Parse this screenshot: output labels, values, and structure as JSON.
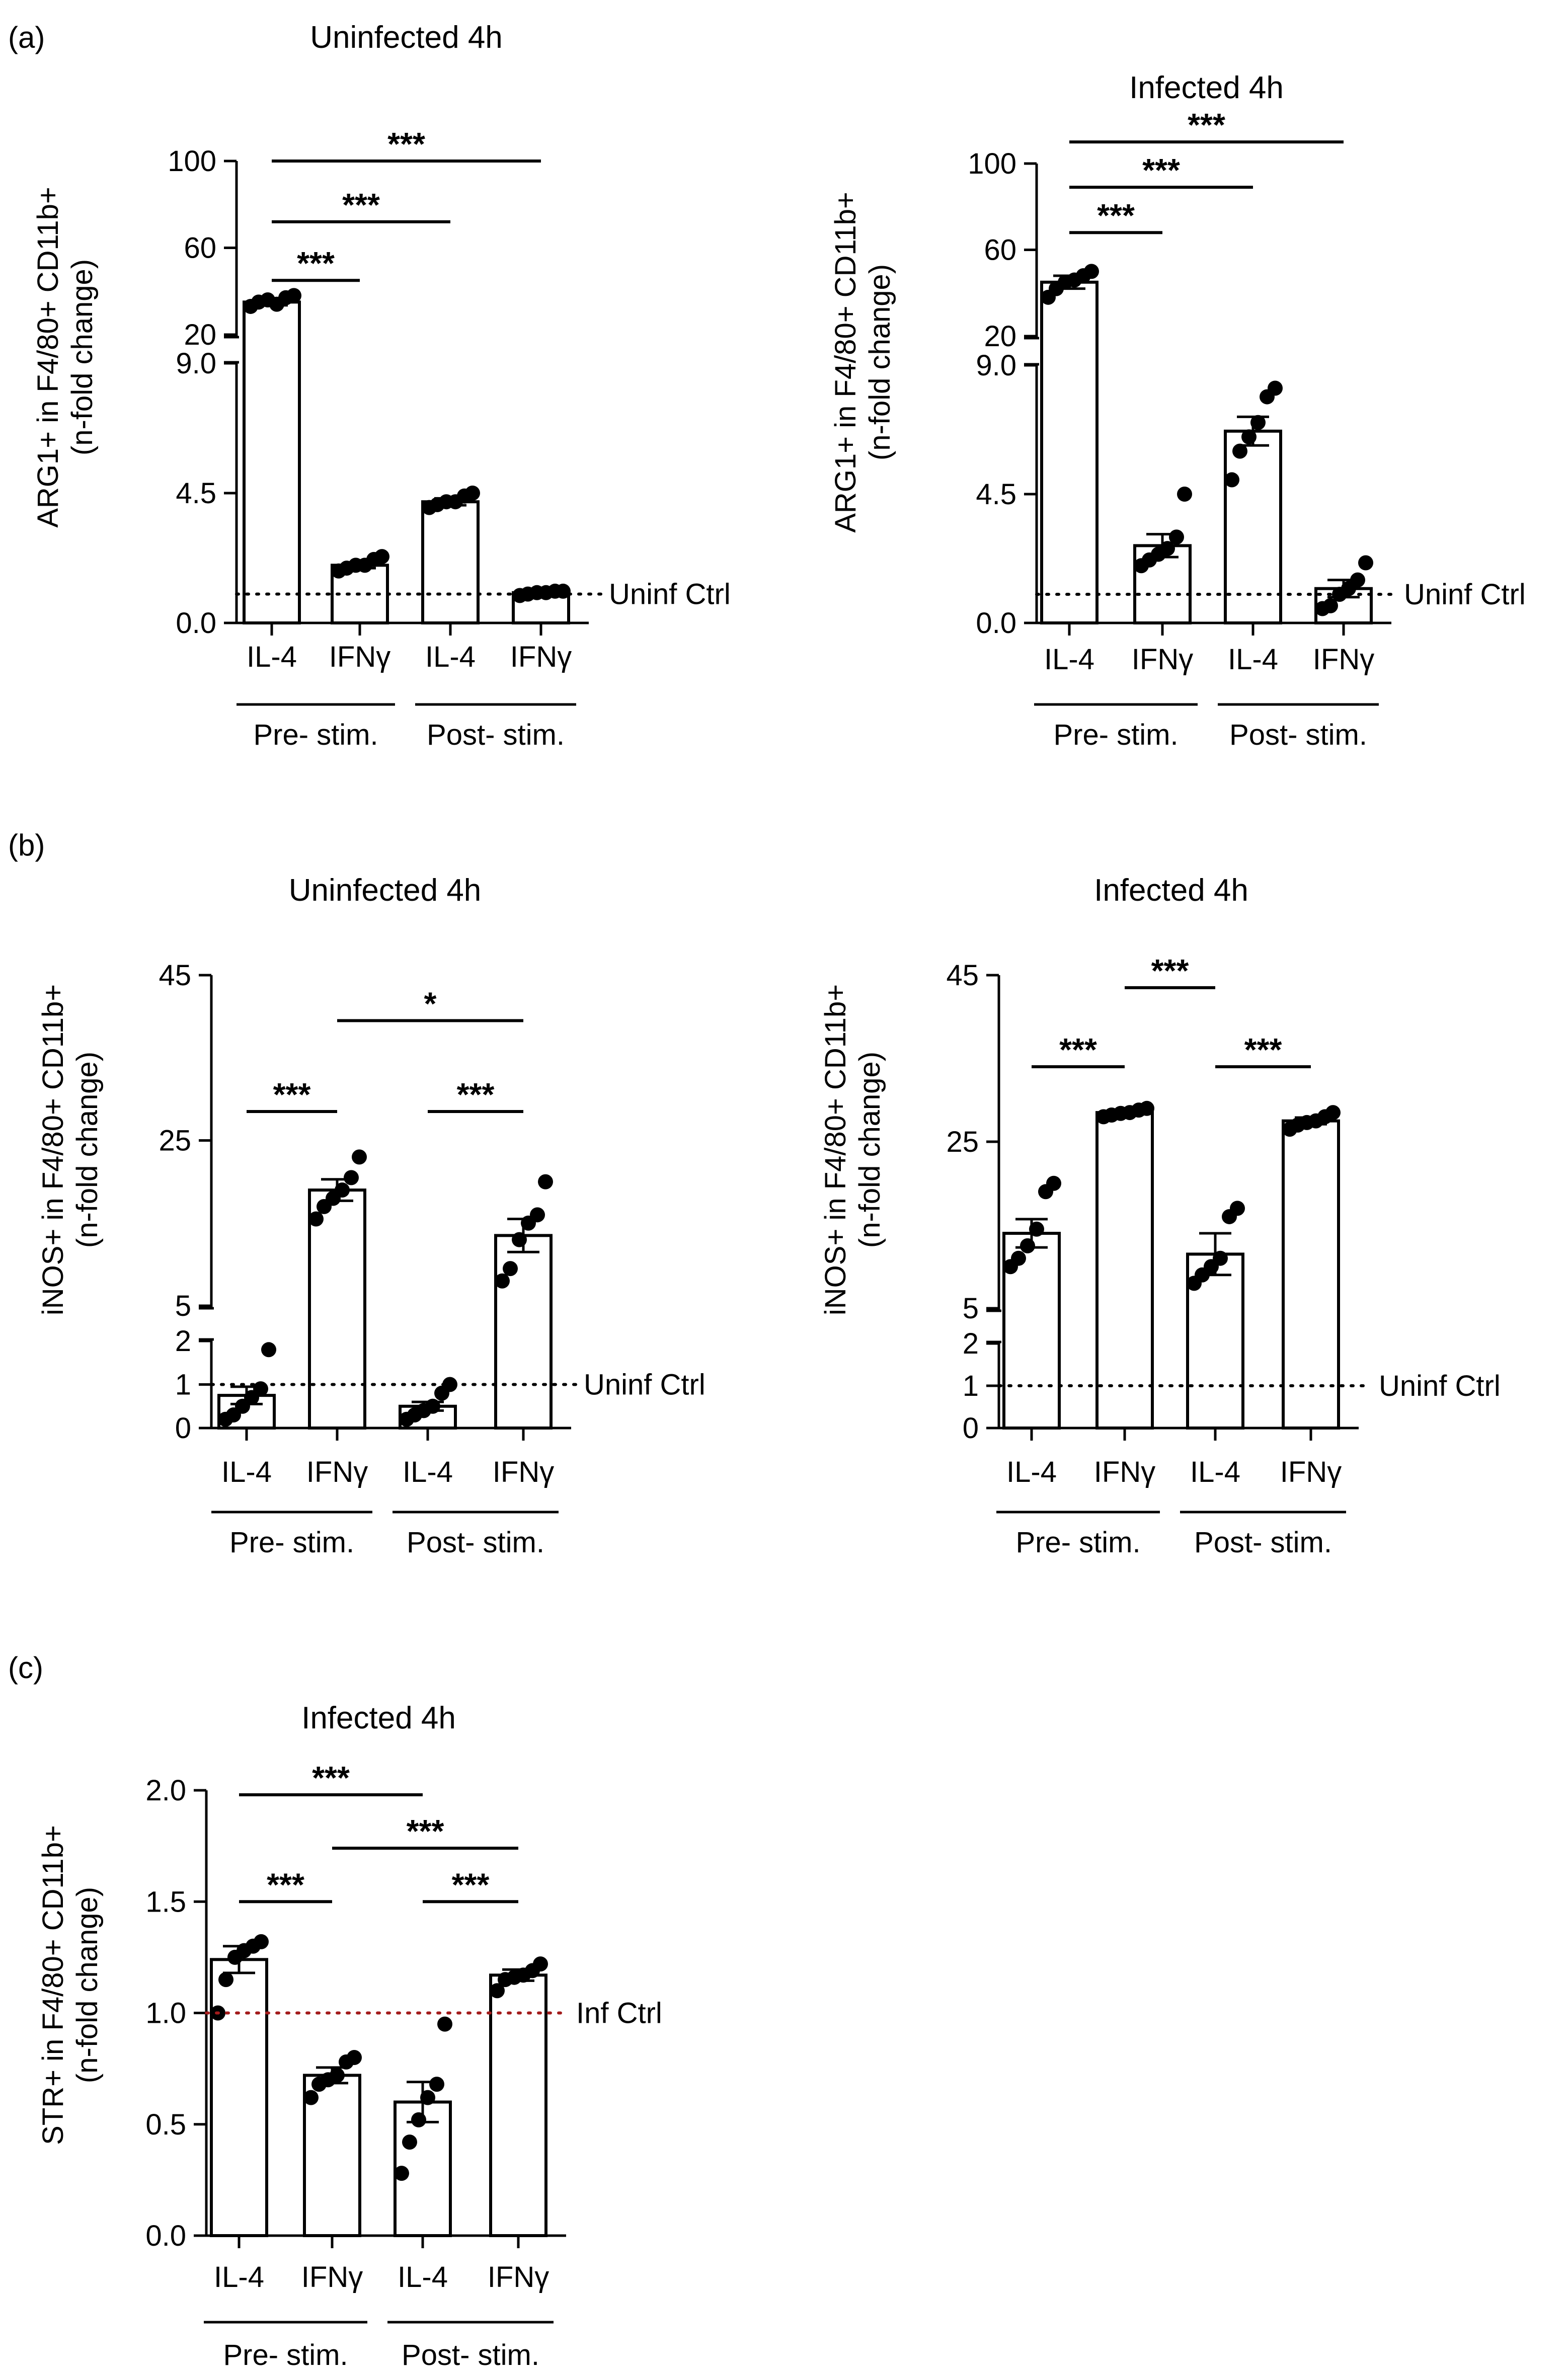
{
  "figure": {
    "panel_labels": [
      "(a)",
      "(b)",
      "(c)"
    ]
  },
  "chart_data": [
    {
      "id": "a1",
      "panel": "(a)",
      "type": "bar",
      "title": "Uninfected 4h",
      "ylabel_line1": "ARG1+ in F4/80+ CD11b+",
      "ylabel_line2": "(n-fold change)",
      "axis_break": true,
      "y_lower": {
        "range": [
          0,
          9
        ],
        "ticks": [
          "0.0",
          "4.5",
          "9.0"
        ],
        "tick_values": [
          0,
          4.5,
          9
        ]
      },
      "y_upper": {
        "range": [
          20,
          100
        ],
        "ticks": [
          "20",
          "60",
          "100"
        ],
        "tick_values": [
          20,
          60,
          100
        ]
      },
      "categories": [
        "IL-4",
        "IFNγ",
        "IL-4",
        "IFNγ"
      ],
      "groups": [
        {
          "label": "Pre- stim.",
          "span": [
            0,
            1
          ]
        },
        {
          "label": "Post- stim.",
          "span": [
            2,
            3
          ]
        }
      ],
      "values": [
        35,
        2.0,
        4.2,
        1.05
      ],
      "sem": [
        1.5,
        0.1,
        0.12,
        0.05
      ],
      "points": [
        [
          33,
          35,
          36,
          34,
          37,
          38
        ],
        [
          1.8,
          1.9,
          2.0,
          2.0,
          2.2,
          2.3
        ],
        [
          4.0,
          4.1,
          4.2,
          4.2,
          4.4,
          4.5
        ],
        [
          0.95,
          1.0,
          1.05,
          1.05,
          1.1,
          1.1
        ]
      ],
      "reference_line": {
        "value": 1.0,
        "label": "Uninf Ctrl",
        "color": "#000000"
      },
      "significance": [
        {
          "from": 0,
          "to": 1,
          "label": "***",
          "y": 45
        },
        {
          "from": 0,
          "to": 2,
          "label": "***",
          "y": 72
        },
        {
          "from": 0,
          "to": 3,
          "label": "***",
          "y": 100
        }
      ]
    },
    {
      "id": "a2",
      "panel": "(a)",
      "type": "bar",
      "title": "Infected 4h",
      "ylabel_line1": "ARG1+ in F4/80+ CD11b+",
      "ylabel_line2": "(n-fold change)",
      "axis_break": true,
      "y_lower": {
        "range": [
          0,
          9
        ],
        "ticks": [
          "0.0",
          "4.5",
          "9.0"
        ],
        "tick_values": [
          0,
          4.5,
          9
        ]
      },
      "y_upper": {
        "range": [
          20,
          100
        ],
        "ticks": [
          "20",
          "60",
          "100"
        ],
        "tick_values": [
          20,
          60,
          100
        ]
      },
      "categories": [
        "IL-4",
        "IFNγ",
        "IL-4",
        "IFNγ"
      ],
      "groups": [
        {
          "label": "Pre- stim.",
          "span": [
            0,
            1
          ]
        },
        {
          "label": "Post- stim.",
          "span": [
            2,
            3
          ]
        }
      ],
      "values": [
        45,
        2.7,
        6.7,
        1.2
      ],
      "sem": [
        3,
        0.4,
        0.5,
        0.3
      ],
      "points": [
        [
          38,
          42,
          45,
          46,
          48,
          50
        ],
        [
          2.0,
          2.2,
          2.4,
          2.6,
          3.0,
          4.5
        ],
        [
          5.0,
          6.0,
          6.5,
          7.0,
          7.9,
          8.2
        ],
        [
          0.5,
          0.6,
          1.0,
          1.2,
          1.5,
          2.1
        ]
      ],
      "reference_line": {
        "value": 1.0,
        "label": "Uninf Ctrl",
        "color": "#000000"
      },
      "significance": [
        {
          "from": 0,
          "to": 1,
          "label": "***",
          "y": 68
        },
        {
          "from": 0,
          "to": 2,
          "label": "***",
          "y": 89
        },
        {
          "from": 0,
          "to": 3,
          "label": "***",
          "y": 110
        }
      ]
    },
    {
      "id": "b1",
      "panel": "(b)",
      "type": "bar",
      "title": "Uninfected 4h",
      "ylabel_line1": "iNOS+ in F4/80+ CD11b+",
      "ylabel_line2": "(n-fold change)",
      "axis_break": true,
      "y_lower": {
        "range": [
          0,
          2
        ],
        "ticks": [
          "0",
          "1",
          "2"
        ],
        "tick_values": [
          0,
          1,
          2
        ]
      },
      "y_upper": {
        "range": [
          5,
          45
        ],
        "ticks": [
          "5",
          "25",
          "45"
        ],
        "tick_values": [
          5,
          25,
          45
        ]
      },
      "categories": [
        "IL-4",
        "IFNγ",
        "IL-4",
        "IFNγ"
      ],
      "groups": [
        {
          "label": "Pre- stim.",
          "span": [
            0,
            1
          ]
        },
        {
          "label": "Post- stim.",
          "span": [
            2,
            3
          ]
        }
      ],
      "values": [
        0.75,
        19,
        0.5,
        13.5
      ],
      "sem": [
        0.2,
        1.3,
        0.1,
        2
      ],
      "points": [
        [
          0.2,
          0.3,
          0.5,
          0.7,
          0.9,
          1.8
        ],
        [
          15.5,
          17,
          18,
          19,
          20.5,
          23
        ],
        [
          0.2,
          0.3,
          0.4,
          0.5,
          0.8,
          1.0
        ],
        [
          8,
          9.5,
          13,
          15,
          16,
          20
        ]
      ],
      "reference_line": {
        "value": 1.0,
        "label": "Uninf Ctrl",
        "color": "#000000"
      },
      "significance": [
        {
          "from": 0,
          "to": 1,
          "label": "***",
          "y": 28.5
        },
        {
          "from": 2,
          "to": 3,
          "label": "***",
          "y": 28.5
        },
        {
          "from": 1,
          "to": 3,
          "label": "*",
          "y": 39.5
        }
      ]
    },
    {
      "id": "b2",
      "panel": "(b)",
      "type": "bar",
      "title": "Infected 4h",
      "ylabel_line1": "iNOS+ in F4/80+ CD11b+",
      "ylabel_line2": "(n-fold change)",
      "axis_break": true,
      "y_lower": {
        "range": [
          0,
          2
        ],
        "ticks": [
          "0",
          "1",
          "2"
        ],
        "tick_values": [
          0,
          1,
          2
        ]
      },
      "y_upper": {
        "range": [
          5,
          45
        ],
        "ticks": [
          "5",
          "25",
          "45"
        ],
        "tick_values": [
          5,
          25,
          45
        ]
      },
      "categories": [
        "IL-4",
        "IFNγ",
        "IL-4",
        "IFNγ"
      ],
      "groups": [
        {
          "label": "Pre- stim.",
          "span": [
            0,
            1
          ]
        },
        {
          "label": "Post- stim.",
          "span": [
            2,
            3
          ]
        }
      ],
      "values": [
        14,
        28.5,
        11.5,
        27.5
      ],
      "sem": [
        1.7,
        0.3,
        2.5,
        0.4
      ],
      "points": [
        [
          10,
          11,
          12.5,
          14.5,
          19,
          20
        ],
        [
          28,
          28.2,
          28.4,
          28.5,
          28.8,
          29
        ],
        [
          8,
          9,
          10,
          11,
          16,
          17
        ],
        [
          26.5,
          27,
          27.3,
          27.5,
          28,
          28.5
        ]
      ],
      "reference_line": {
        "value": 1.0,
        "label": "Uninf Ctrl",
        "color": "#000000"
      },
      "significance": [
        {
          "from": 0,
          "to": 1,
          "label": "***",
          "y": 34
        },
        {
          "from": 2,
          "to": 3,
          "label": "***",
          "y": 34
        },
        {
          "from": 1,
          "to": 2,
          "label": "***",
          "y": 43.5
        }
      ]
    },
    {
      "id": "c1",
      "panel": "(c)",
      "type": "bar",
      "title": "Infected 4h",
      "ylabel_line1": "STR+ in F4/80+ CD11b+",
      "ylabel_line2": "(n-fold change)",
      "axis_break": false,
      "ylim": [
        0,
        2
      ],
      "y_ticks": [
        "0.0",
        "0.5",
        "1.0",
        "1.5",
        "2.0"
      ],
      "y_tick_values": [
        0,
        0.5,
        1,
        1.5,
        2
      ],
      "categories": [
        "IL-4",
        "IFNγ",
        "IL-4",
        "IFNγ"
      ],
      "groups": [
        {
          "label": "Pre- stim.",
          "span": [
            0,
            1
          ]
        },
        {
          "label": "Post- stim.",
          "span": [
            2,
            3
          ]
        }
      ],
      "values": [
        1.24,
        0.72,
        0.6,
        1.17
      ],
      "sem": [
        0.06,
        0.035,
        0.09,
        0.025
      ],
      "points": [
        [
          1.0,
          1.15,
          1.25,
          1.28,
          1.3,
          1.32
        ],
        [
          0.62,
          0.68,
          0.7,
          0.72,
          0.78,
          0.8
        ],
        [
          0.28,
          0.42,
          0.52,
          0.62,
          0.68,
          0.95
        ],
        [
          1.1,
          1.15,
          1.16,
          1.17,
          1.19,
          1.22
        ]
      ],
      "reference_line": {
        "value": 1.0,
        "label": "Inf Ctrl",
        "color": "#a31c1c"
      },
      "significance": [
        {
          "from": 0,
          "to": 1,
          "label": "***",
          "y": 1.5
        },
        {
          "from": 2,
          "to": 3,
          "label": "***",
          "y": 1.5
        },
        {
          "from": 1,
          "to": 3,
          "label": "***",
          "y": 1.74
        },
        {
          "from": 0,
          "to": 2,
          "label": "***",
          "y": 1.98
        }
      ]
    }
  ]
}
